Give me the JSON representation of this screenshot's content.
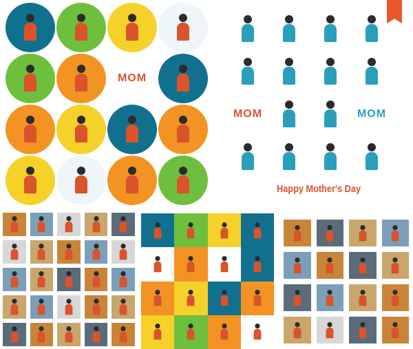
{
  "circles": [
    {
      "color": "#12708f"
    },
    {
      "color": "#6fbf3f"
    },
    {
      "color": "#f5d12a"
    },
    {
      "color": "#eef6fa"
    },
    {
      "color": "#6fbf3f"
    },
    {
      "color": "#f39323"
    },
    {
      "color": "#ffffff",
      "label": "MOM"
    },
    {
      "color": "#12708f"
    },
    {
      "color": "#f39323"
    },
    {
      "color": "#f5d12a"
    },
    {
      "color": "#12708f"
    },
    {
      "color": "#f39323"
    },
    {
      "color": "#f5d12a"
    },
    {
      "color": "#eef6fa"
    },
    {
      "color": "#f39323"
    },
    {
      "color": "#6fbf3f"
    }
  ],
  "white_icons": {
    "labels": [
      "MOM",
      "MOM"
    ]
  },
  "title": "Happy Mother's Day",
  "accent": "#d9532b",
  "left_panel": [
    "#c8853a",
    "#7c9fb9",
    "#d7d7d7",
    "#c9a66b",
    "#5b6b7a",
    "#d7d7d7",
    "#c9a66b",
    "#c8853a",
    "#7c9fb9",
    "#d7d7d7",
    "#7c9fb9",
    "#c9a66b",
    "#5b6b7a",
    "#c8853a",
    "#7c9fb9",
    "#c9a66b",
    "#7c9fb9",
    "#d7d7d7",
    "#c8853a",
    "#c9a66b",
    "#5b6b7a",
    "#c8853a",
    "#c9a66b",
    "#5b6b7a",
    "#c8853a"
  ],
  "middle_panel": [
    "#12708f",
    "#6fbf3f",
    "#f5d12a",
    "#12708f",
    "#ffffff",
    "#f39323",
    "#ffffff",
    "#12708f",
    "#f39323",
    "#f5d12a",
    "#12708f",
    "#f39323",
    "#f5d12a",
    "#6fbf3f",
    "#f39323",
    "#ffffff"
  ],
  "right_panel": [
    "#c8853a",
    "#5b6b7a",
    "#c9a66b",
    "#7c9fb9",
    "#7c9fb9",
    "#c8853a",
    "#5b6b7a",
    "#c9a66b",
    "#5b6b7a",
    "#7c9fb9",
    "#c9a66b",
    "#c8853a",
    "#c9a66b",
    "#d7d7d7",
    "#5b6b7a",
    "#c8853a"
  ]
}
